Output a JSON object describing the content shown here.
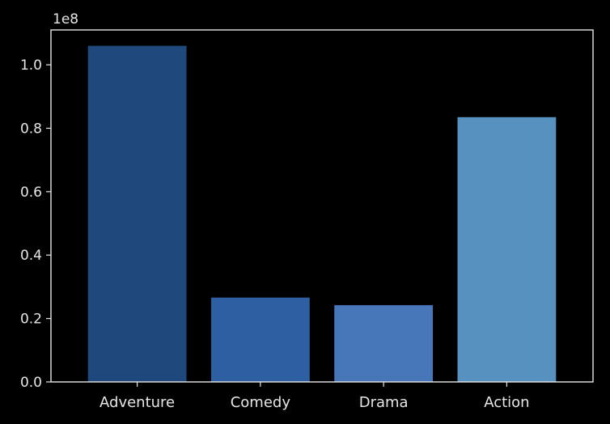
{
  "chart_data": {
    "type": "bar",
    "categories": [
      "Adventure",
      "Comedy",
      "Drama",
      "Action"
    ],
    "values": [
      106000000,
      26600000,
      24200000,
      83500000
    ],
    "colors": [
      "#1f497d",
      "#2f5fa3",
      "#4777b8",
      "#5691c0"
    ],
    "axis_color": "#e6e6e6",
    "background": "#000000",
    "ylim": [
      0,
      111000000
    ],
    "yticks": [
      0,
      20000000,
      40000000,
      60000000,
      80000000,
      100000000
    ],
    "ytick_labels": [
      "0.0",
      "0.2",
      "0.4",
      "0.6",
      "0.8",
      "1.0"
    ],
    "offset_label": "1e8",
    "grid": false
  }
}
